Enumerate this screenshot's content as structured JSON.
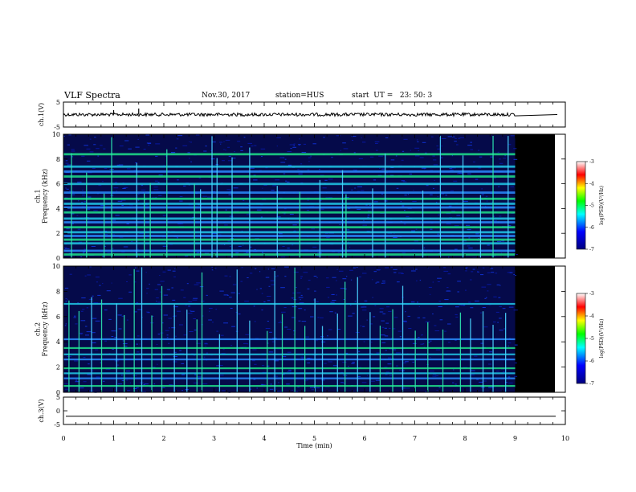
{
  "header": {
    "title": "VLF Spectra",
    "date": "Nov.30, 2017",
    "station": "station=HUS",
    "start": "start  UT =   23: 50: 3"
  },
  "chart_data": [
    {
      "type": "line",
      "panel": "ch1-waveform",
      "ylabel": "ch.1(V)",
      "ylim": [
        -5,
        5
      ],
      "yticks": [
        "5",
        "-5"
      ],
      "xlim": [
        0,
        10
      ],
      "data_end_min": 9.0,
      "trace_level_v": 0,
      "spikes": [
        {
          "x": 1.0,
          "y": 1.8
        },
        {
          "x": 1.5,
          "y": 2.4
        }
      ],
      "color": "#000000"
    },
    {
      "type": "heatmap",
      "panel": "ch1-spectrogram",
      "ylabel": "ch.1\nFrequency (kHz)",
      "ylim": [
        0,
        10
      ],
      "yticks": [
        "0",
        "2",
        "4",
        "6",
        "8",
        "10"
      ],
      "xlim": [
        0,
        10
      ],
      "data_end_min": 9.0,
      "colorbar": {
        "label": "log(PSD)(V²/Hz)",
        "ticks": [
          "-3",
          "-4",
          "-5",
          "-6",
          "-7"
        ],
        "range": [
          -7,
          -3
        ]
      },
      "horizontal_bands_khz": [
        0.3,
        0.6,
        1.2,
        1.5,
        1.8,
        2.1,
        2.5,
        2.9,
        3.2,
        3.7,
        4.1,
        4.4,
        4.8,
        5.3,
        6.0,
        6.6,
        7.0,
        7.4,
        8.4
      ],
      "vertical_bursts_min": [
        0.15,
        0.45,
        0.8,
        0.95,
        1.45,
        1.6,
        1.72,
        2.05,
        2.6,
        2.72,
        2.95,
        3.05,
        3.35,
        3.7,
        4.25,
        4.7,
        5.1,
        5.55,
        5.62,
        6.15,
        6.4,
        7.15,
        7.5,
        7.95,
        8.3,
        8.55,
        8.85
      ]
    },
    {
      "type": "heatmap",
      "panel": "ch2-spectrogram",
      "ylabel": "ch.2\nFrequency (kHz)",
      "ylim": [
        0,
        10
      ],
      "yticks": [
        "0",
        "2",
        "4",
        "6",
        "8",
        "10"
      ],
      "xlim": [
        0,
        10
      ],
      "data_end_min": 9.0,
      "colorbar": {
        "label": "log(PSD)(V²/Hz)",
        "ticks": [
          "-3",
          "-4",
          "-5",
          "-6",
          "-7"
        ],
        "range": [
          -7,
          -3
        ]
      },
      "horizontal_bands_khz": [
        0.5,
        1.1,
        1.5,
        1.9,
        2.6,
        3.0,
        3.5,
        4.2,
        7.0
      ],
      "vertical_bursts_min": [
        0.1,
        0.3,
        0.55,
        0.75,
        1.05,
        1.2,
        1.4,
        1.55,
        1.75,
        1.95,
        2.2,
        2.45,
        2.65,
        2.75,
        3.1,
        3.45,
        3.7,
        4.05,
        4.2,
        4.35,
        4.6,
        4.8,
        5.0,
        5.15,
        5.45,
        5.6,
        5.85,
        6.1,
        6.3,
        6.55,
        6.75,
        7.0,
        7.25,
        7.55,
        7.9,
        8.1,
        8.35,
        8.55,
        8.8
      ]
    },
    {
      "type": "line",
      "panel": "ch3-waveform",
      "ylabel": "ch.3(V)",
      "ylim": [
        -5,
        5
      ],
      "yticks": [
        "5",
        "0",
        "-5"
      ],
      "xlim": [
        0,
        10
      ],
      "trace_level_v": -2,
      "color": "#000000"
    }
  ],
  "xaxis": {
    "label": "Time  (min)",
    "ticks": [
      "0",
      "1",
      "2",
      "3",
      "4",
      "5",
      "6",
      "7",
      "8",
      "9",
      "10"
    ],
    "range": [
      0,
      10
    ]
  }
}
